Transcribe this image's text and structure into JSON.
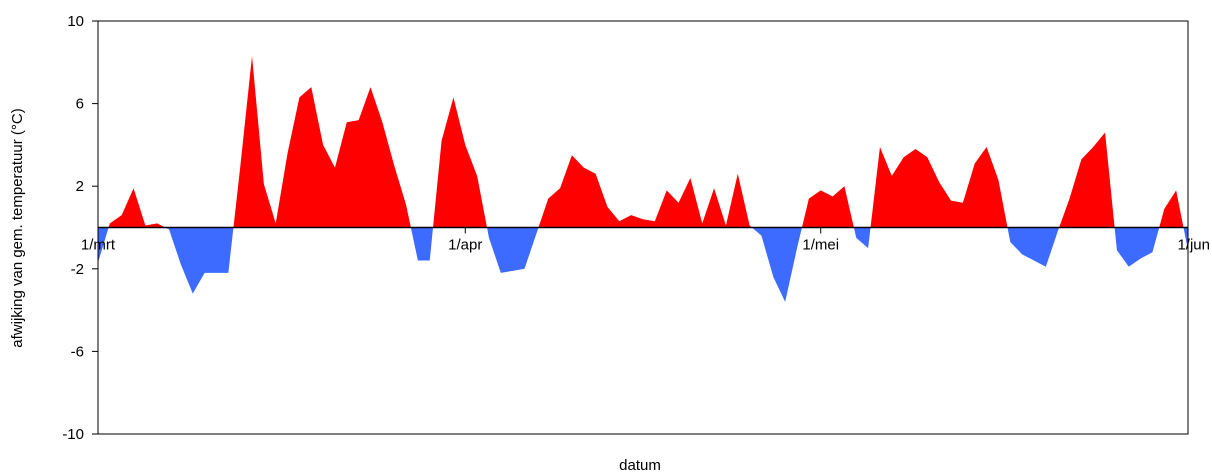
{
  "chart_data": {
    "type": "area",
    "title": "",
    "xlabel": "datum",
    "ylabel": "afwijking van gem. temperatuur (°C)",
    "ylim": [
      -10,
      10
    ],
    "yticks": [
      10,
      6,
      2,
      -2,
      -6,
      -10
    ],
    "xlim": [
      "2018-03-01",
      "2018-06-01"
    ],
    "xticks": [
      {
        "date": "2018-03-01",
        "label": "1/mrt"
      },
      {
        "date": "2018-04-01",
        "label": "1/apr"
      },
      {
        "date": "2018-05-01",
        "label": "1/mei"
      },
      {
        "date": "2018-06-01",
        "label": "1/jun"
      }
    ],
    "grid": false,
    "colors": {
      "positive": "#ff0000",
      "negative": "#3d6bff"
    },
    "series": [
      {
        "x": [
          "2018-03-01",
          "2018-03-02",
          "2018-03-03",
          "2018-03-04",
          "2018-03-05",
          "2018-03-06",
          "2018-03-07",
          "2018-03-08",
          "2018-03-09",
          "2018-03-10",
          "2018-03-11",
          "2018-03-12",
          "2018-03-13",
          "2018-03-14",
          "2018-03-15",
          "2018-03-16",
          "2018-03-17",
          "2018-03-18",
          "2018-03-19",
          "2018-03-20",
          "2018-03-21",
          "2018-03-22",
          "2018-03-23",
          "2018-03-24",
          "2018-03-25",
          "2018-03-26",
          "2018-03-27",
          "2018-03-28",
          "2018-03-29",
          "2018-03-30",
          "2018-03-31",
          "2018-04-01",
          "2018-04-02",
          "2018-04-03",
          "2018-04-04",
          "2018-04-05",
          "2018-04-06",
          "2018-04-07",
          "2018-04-08",
          "2018-04-09",
          "2018-04-10",
          "2018-04-11",
          "2018-04-12",
          "2018-04-13",
          "2018-04-14",
          "2018-04-15",
          "2018-04-16",
          "2018-04-17",
          "2018-04-18",
          "2018-04-19",
          "2018-04-20",
          "2018-04-21",
          "2018-04-22",
          "2018-04-23",
          "2018-04-24",
          "2018-04-25",
          "2018-04-26",
          "2018-04-27",
          "2018-04-28",
          "2018-04-29",
          "2018-04-30",
          "2018-05-01",
          "2018-05-02",
          "2018-05-03",
          "2018-05-04",
          "2018-05-05",
          "2018-05-06",
          "2018-05-07",
          "2018-05-08",
          "2018-05-09",
          "2018-05-10",
          "2018-05-11",
          "2018-05-12",
          "2018-05-13",
          "2018-05-14",
          "2018-05-15",
          "2018-05-16",
          "2018-05-17",
          "2018-05-18",
          "2018-05-19",
          "2018-05-20",
          "2018-05-21",
          "2018-05-22",
          "2018-05-23",
          "2018-05-24",
          "2018-05-25",
          "2018-05-26",
          "2018-05-27",
          "2018-05-28",
          "2018-05-29",
          "2018-05-30",
          "2018-05-31",
          "2018-06-01"
        ],
        "y": [
          -1.7,
          0.2,
          0.6,
          1.9,
          0.1,
          0.2,
          -0.1,
          -1.8,
          -3.2,
          -2.2,
          -2.2,
          -2.2,
          2.9,
          8.3,
          2.1,
          0.2,
          3.6,
          6.3,
          6.8,
          4.0,
          2.9,
          5.1,
          5.2,
          6.8,
          5.1,
          3.0,
          1.1,
          -1.6,
          -1.6,
          4.2,
          6.3,
          4.0,
          2.5,
          -0.5,
          -2.2,
          -2.1,
          -2.0,
          -0.3,
          1.4,
          1.9,
          3.5,
          2.9,
          2.6,
          1.0,
          0.3,
          0.6,
          0.4,
          0.3,
          1.8,
          1.2,
          2.4,
          0.2,
          1.9,
          0.1,
          2.6,
          0.1,
          -0.4,
          -2.4,
          -3.6,
          -1.0,
          1.4,
          1.8,
          1.5,
          2.0,
          -0.5,
          -1.0,
          3.9,
          2.5,
          3.4,
          3.8,
          3.4,
          2.2,
          1.3,
          1.2,
          3.1,
          3.9,
          2.3,
          -0.7,
          -1.3,
          -1.6,
          -1.9,
          -0.2,
          1.4,
          3.3,
          3.9,
          4.6,
          -1.1,
          -1.9,
          -1.5,
          -1.2,
          0.9,
          1.8,
          -1.1
        ]
      }
    ]
  }
}
